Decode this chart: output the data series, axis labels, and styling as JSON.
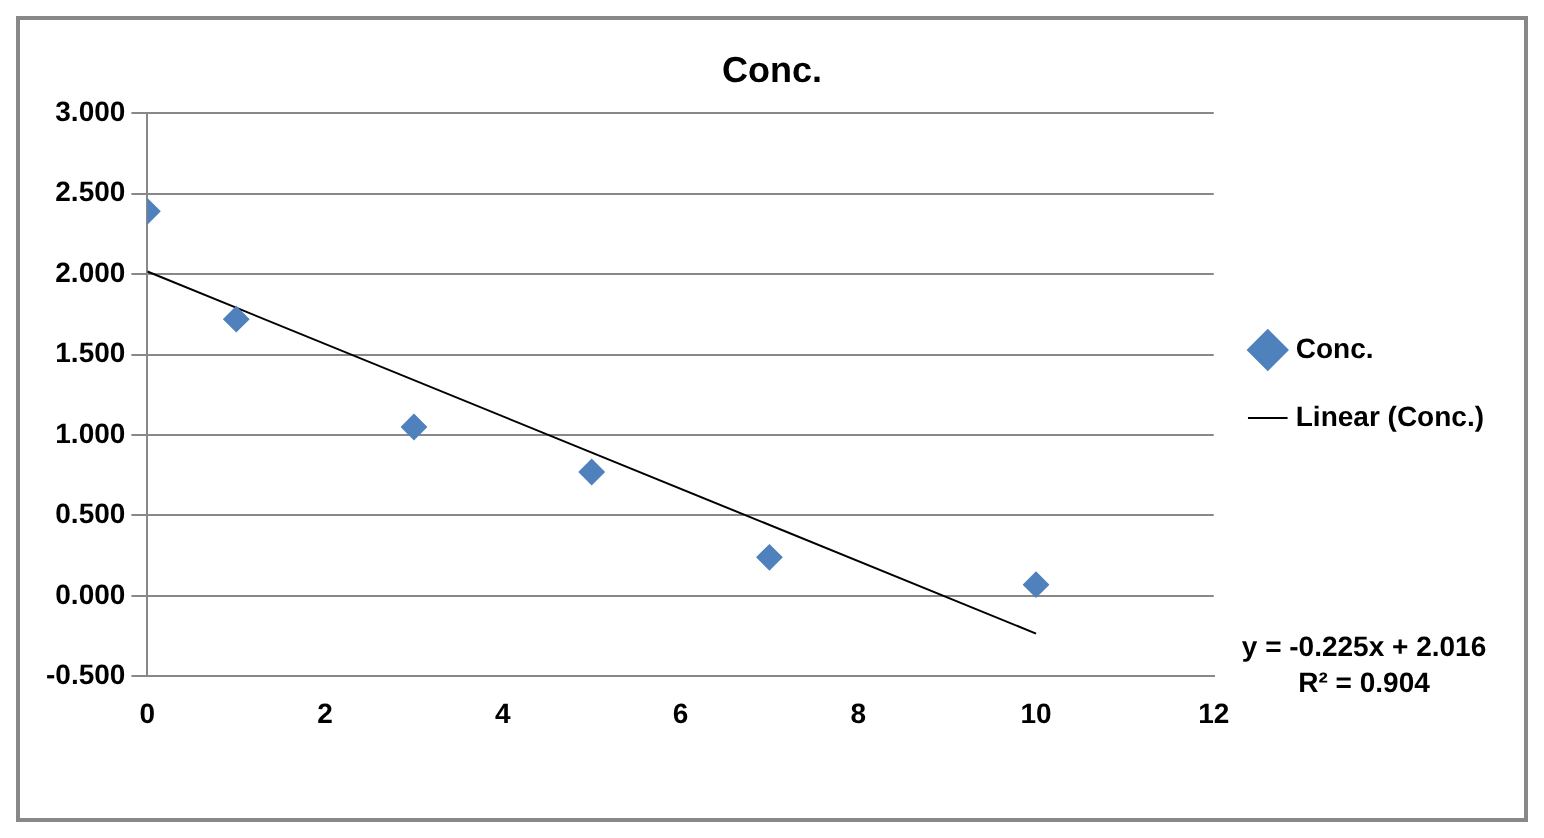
{
  "chart_data": {
    "type": "scatter",
    "title": "Conc.",
    "series": [
      {
        "name": "Conc.",
        "color": "#4f81bd",
        "x": [
          0,
          1,
          3,
          5,
          7,
          10
        ],
        "values": [
          2.39,
          1.72,
          1.05,
          0.77,
          0.24,
          0.07
        ]
      },
      {
        "name": "Linear (Conc.)",
        "type": "line",
        "color": "#000000",
        "x": [
          0,
          10
        ],
        "values": [
          2.016,
          -0.234
        ],
        "marker": "none"
      }
    ],
    "xlim": [
      0,
      12
    ],
    "xticks": [
      0,
      2,
      4,
      6,
      8,
      10,
      12
    ],
    "ylim": [
      -0.5,
      3
    ],
    "yticks": [
      {
        "value": -0.5,
        "label": "-0.500"
      },
      {
        "value": 0,
        "label": "0.000"
      },
      {
        "value": 0.5,
        "label": "0.500"
      },
      {
        "value": 1,
        "label": "1.000"
      },
      {
        "value": 1.5,
        "label": "1.500"
      },
      {
        "value": 2,
        "label": "2.000"
      },
      {
        "value": 2.5,
        "label": "2.500"
      },
      {
        "value": 3,
        "label": "3.000"
      }
    ],
    "grid": "y",
    "legend": "right",
    "marker": "diamond",
    "annotations": [
      "y = -0.225x + 2.016",
      "R² = 0.904"
    ]
  }
}
